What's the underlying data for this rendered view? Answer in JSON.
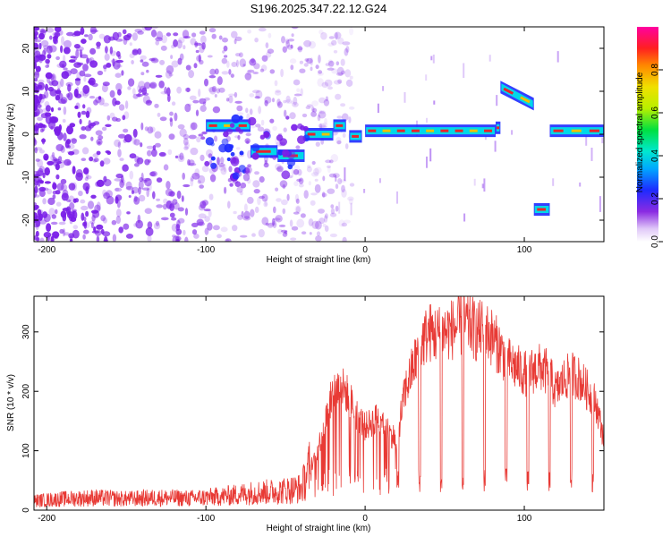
{
  "colors": {
    "spectrum_scatter": "#7a1ee8",
    "ridge_core": "#e8242a",
    "snr_line": "#e83a35",
    "axis": "#000000"
  },
  "chart_data": [
    {
      "type": "heatmap",
      "title": "S196.2025.347.22.12.G24",
      "xlabel": "Height of straight line (km)",
      "ylabel": "Frequency (Hz)",
      "xlim": [
        -208,
        150
      ],
      "ylim": [
        -25,
        25
      ],
      "xticks": [
        -200,
        -100,
        0,
        100
      ],
      "yticks": [
        -20,
        -10,
        0,
        10,
        20
      ],
      "colorbar": {
        "label": "Normalized spectral amplitude",
        "range": [
          0.0,
          1.0
        ],
        "ticks": [
          0.0,
          0.2,
          0.4,
          0.6,
          0.8
        ]
      },
      "ridge_segments": [
        {
          "x0": -100,
          "x1": -72,
          "y": 2
        },
        {
          "x0": -72,
          "x1": -55,
          "y": -4
        },
        {
          "x0": -55,
          "x1": -38,
          "y": -5
        },
        {
          "x0": -38,
          "x1": -20,
          "y": 0
        },
        {
          "x0": -20,
          "x1": -12,
          "y": 2
        },
        {
          "x0": -10,
          "x1": -2,
          "y": -0.5
        },
        {
          "x0": 0,
          "x1": 82,
          "y": 0.8
        },
        {
          "x0": 82,
          "x1": 85,
          "y": 1.5
        },
        {
          "x0": 85,
          "x1": 106,
          "y": 11,
          "y_end": 7
        },
        {
          "x0": 106,
          "x1": 116,
          "y": -17.5
        },
        {
          "x0": 116,
          "x1": 150,
          "y": 0.8
        }
      ]
    },
    {
      "type": "line",
      "title": "",
      "xlabel": "Height of straight line (km)",
      "ylabel": "SNR (10 * v/v)",
      "xlim": [
        -208,
        150
      ],
      "ylim": [
        0,
        360
      ],
      "xticks": [
        -200,
        -100,
        0,
        100
      ],
      "yticks": [
        0,
        100,
        200,
        300
      ],
      "series": [
        {
          "name": "SNR",
          "x": [
            -208,
            -190,
            -170,
            -150,
            -130,
            -110,
            -90,
            -70,
            -55,
            -40,
            -30,
            -20,
            -15,
            -10,
            -5,
            0,
            5,
            10,
            15,
            20,
            25,
            30,
            35,
            40,
            45,
            50,
            55,
            60,
            65,
            70,
            75,
            80,
            85,
            90,
            95,
            100,
            105,
            110,
            115,
            120,
            125,
            130,
            135,
            140,
            145,
            150
          ],
          "values": [
            15,
            18,
            20,
            18,
            20,
            19,
            22,
            28,
            30,
            35,
            100,
            200,
            210,
            190,
            160,
            140,
            150,
            160,
            130,
            120,
            200,
            240,
            280,
            300,
            295,
            300,
            305,
            310,
            315,
            300,
            305,
            290,
            270,
            250,
            240,
            230,
            235,
            240,
            230,
            200,
            220,
            230,
            220,
            200,
            180,
            120
          ]
        }
      ]
    }
  ]
}
